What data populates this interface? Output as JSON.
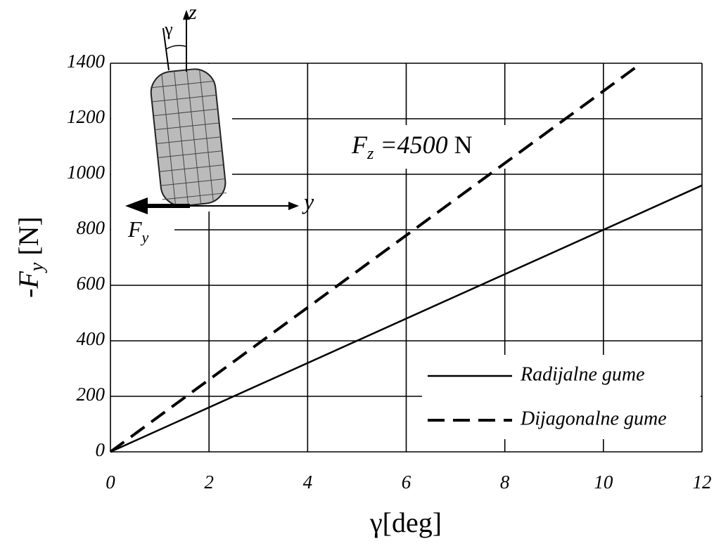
{
  "chart_data": {
    "type": "line",
    "xlabel": "γ[deg]",
    "ylabel": {
      "main": "-F",
      "sub": "y",
      "unit": " [N]"
    },
    "annotation": {
      "main": "F",
      "sub": "z",
      "value": " =4500",
      "unit": " N"
    },
    "inset": {
      "angle": "γ",
      "vertical_axis": "z",
      "lateral_axis": "y",
      "force": "F",
      "force_sub": "y"
    },
    "xlim": [
      0,
      12
    ],
    "xticks": [
      0,
      2,
      4,
      6,
      8,
      10,
      12
    ],
    "ylim": [
      0,
      1400
    ],
    "yticks": [
      0,
      200,
      400,
      600,
      800,
      1000,
      1200,
      1400
    ],
    "grid": true,
    "legend": "lower right",
    "series": [
      {
        "name": "Radijalne gume",
        "color": "#000000",
        "style": "solid",
        "x": [
          0,
          12
        ],
        "values": [
          0,
          960
        ]
      },
      {
        "name": "Dijagonalne gume",
        "color": "#000000",
        "style": "dashed",
        "x": [
          0,
          10.77
        ],
        "values": [
          0,
          1400
        ]
      }
    ]
  }
}
